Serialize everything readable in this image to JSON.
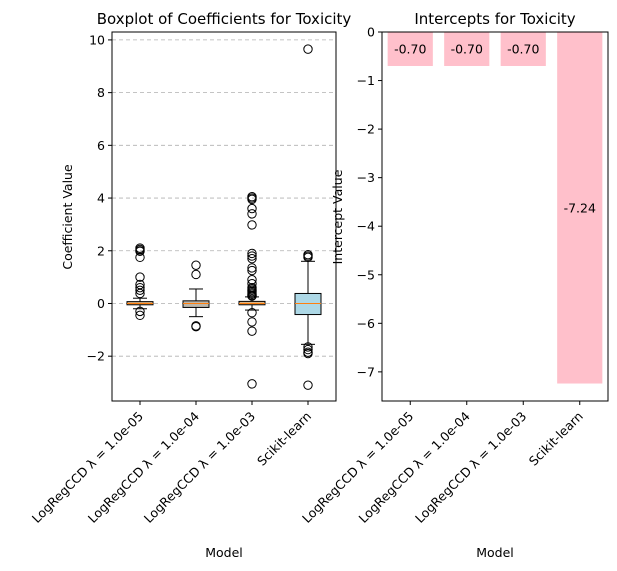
{
  "chart_data": [
    {
      "type": "boxplot",
      "title": "Boxplot of Coefficients for Toxicity",
      "xlabel": "Model",
      "ylabel": "Coefficient Value",
      "ylim": [
        -3.7,
        10.3
      ],
      "yticks": [
        -2,
        0,
        2,
        4,
        6,
        8,
        10
      ],
      "ytick_labels": [
        "−2",
        "0",
        "2",
        "4",
        "6",
        "8",
        "10"
      ],
      "grid": "y",
      "categories": [
        "LogRegCCD λ = 1.0e-05",
        "LogRegCCD λ = 1.0e-04",
        "LogRegCCD λ = 1.0e-03",
        "Scikit-learn"
      ],
      "boxes": [
        {
          "q1": -0.05,
          "median": 0.0,
          "q3": 0.07,
          "whisker_low": -0.2,
          "whisker_high": 0.2,
          "color": "#deb887",
          "outliers": [
            2.1,
            2.05,
            2.0,
            1.98,
            1.75,
            1.0,
            0.72,
            0.6,
            0.5,
            0.38,
            -0.3,
            -0.45
          ]
        },
        {
          "q1": -0.15,
          "median": 0.0,
          "q3": 0.1,
          "whisker_low": -0.5,
          "whisker_high": 0.55,
          "color": "#bdb7ab",
          "outliers": [
            1.45,
            1.1,
            -0.85,
            -0.88
          ]
        },
        {
          "q1": -0.05,
          "median": 0.0,
          "q3": 0.08,
          "whisker_low": -0.25,
          "whisker_high": 0.25,
          "color": "#deb887",
          "outliers": [
            4.05,
            4.0,
            3.95,
            3.6,
            3.4,
            2.98,
            1.9,
            1.8,
            1.7,
            1.35,
            1.25,
            0.9,
            0.75,
            0.6,
            0.55,
            0.5,
            0.45,
            0.4,
            0.35,
            0.3,
            0.28,
            -0.35,
            -0.7,
            -1.05,
            -3.05
          ]
        },
        {
          "q1": -0.42,
          "median": 0.0,
          "q3": 0.38,
          "whisker_low": -1.55,
          "whisker_high": 1.6,
          "color": "#add8e6",
          "outliers": [
            9.65,
            1.85,
            1.8,
            1.75,
            -1.65,
            -1.75,
            -1.85,
            -1.9,
            -3.1
          ]
        }
      ]
    },
    {
      "type": "bar",
      "title": "Intercepts for Toxicity",
      "xlabel": "Model",
      "ylabel": "Intercept Value",
      "ylim": [
        -7.6,
        0
      ],
      "yticks": [
        -7,
        -6,
        -5,
        -4,
        -3,
        -2,
        -1,
        0
      ],
      "ytick_labels": [
        "−7",
        "−6",
        "−5",
        "−4",
        "−3",
        "−2",
        "−1",
        "0"
      ],
      "categories": [
        "LogRegCCD λ = 1.0e-05",
        "LogRegCCD λ = 1.0e-04",
        "LogRegCCD λ = 1.0e-03",
        "Scikit-learn"
      ],
      "values": [
        -0.7,
        -0.7,
        -0.7,
        -7.24
      ],
      "data_labels": [
        "-0.70",
        "-0.70",
        "-0.70",
        "-7.24"
      ],
      "color": "#ffc0cb"
    }
  ]
}
